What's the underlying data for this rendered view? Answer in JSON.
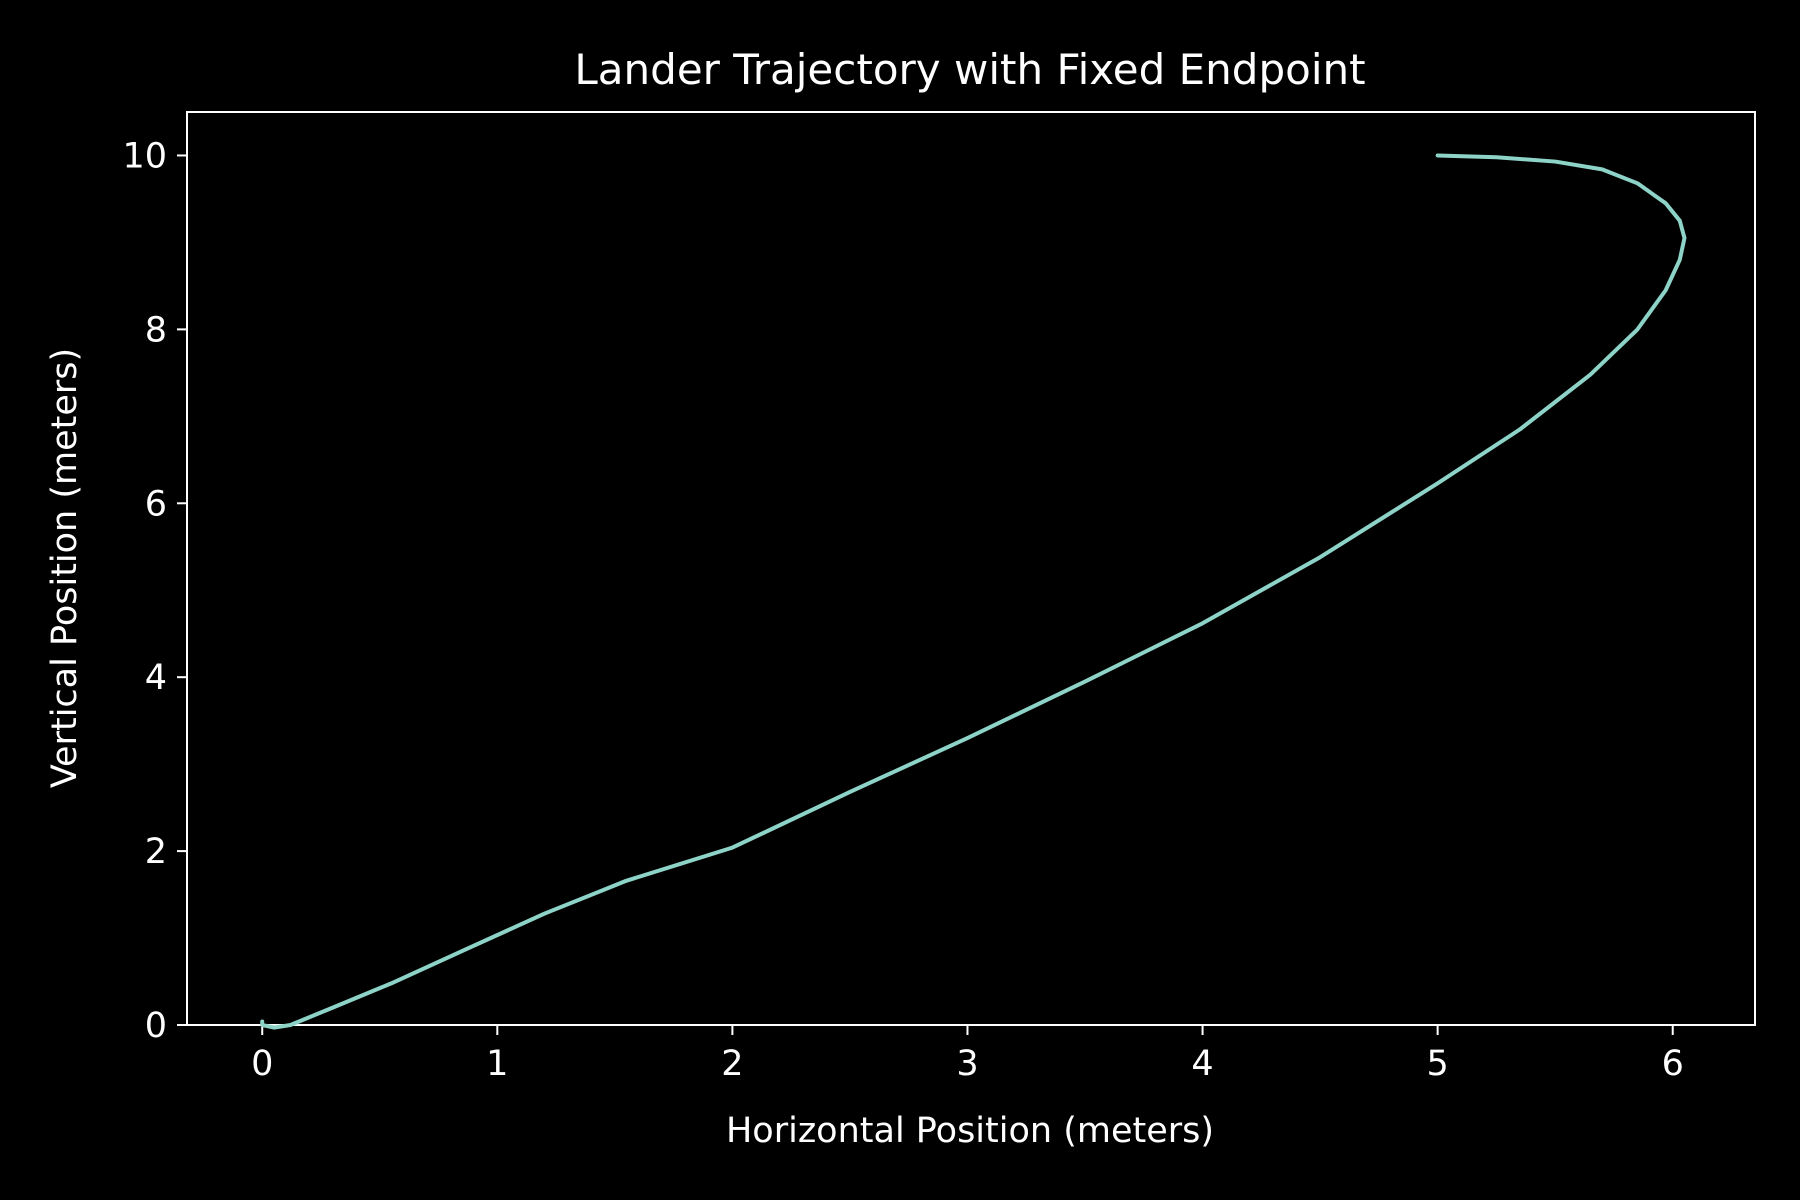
{
  "chart_data": {
    "type": "line",
    "title": "Lander Trajectory with Fixed Endpoint",
    "xlabel": "Horizontal Position (meters)",
    "ylabel": "Vertical Position (meters)",
    "xlim": [
      -0.32,
      6.35
    ],
    "ylim": [
      0,
      10.5
    ],
    "xticks": [
      0,
      1,
      2,
      3,
      4,
      5,
      6
    ],
    "yticks": [
      0,
      2,
      4,
      6,
      8,
      10
    ],
    "grid": false,
    "colors": {
      "background": "#000000",
      "axes": "#ffffff",
      "text": "#ffffff",
      "series": "#8dd3c7"
    },
    "series": [
      {
        "x": [
          0.0,
          0.0,
          0.05,
          0.12,
          0.3,
          0.55,
          0.85,
          1.2,
          1.55,
          2.0,
          2.5,
          3.0,
          3.5,
          4.0,
          4.5,
          5.0,
          5.35,
          5.65,
          5.85,
          5.97,
          6.03,
          6.05,
          6.03,
          5.97,
          5.85,
          5.7,
          5.5,
          5.25,
          5.0
        ],
        "y": [
          0.04,
          0.0,
          -0.03,
          0.0,
          0.2,
          0.48,
          0.85,
          1.28,
          1.66,
          2.04,
          2.68,
          3.3,
          3.95,
          4.62,
          5.38,
          6.23,
          6.85,
          7.48,
          8.0,
          8.45,
          8.8,
          9.05,
          9.25,
          9.45,
          9.68,
          9.84,
          9.93,
          9.98,
          10.0
        ]
      }
    ]
  }
}
